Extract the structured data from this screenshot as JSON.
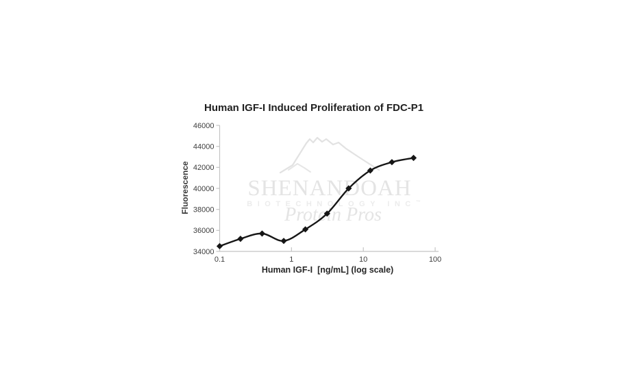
{
  "chart": {
    "title": "Human IGF-I Induced Proliferation of FDC-P1",
    "xlabel": "Human IGF-I  [ng/mL] (log scale)",
    "ylabel": "Fluorescence"
  },
  "watermark": {
    "name": "SHENANDOAH",
    "subtitle": "BIOTECHNOLOGY INC",
    "trademark": "™",
    "tagline": "Protein Pros"
  },
  "chart_data": {
    "type": "line",
    "title": "Human IGF-I Induced Proliferation of FDC-P1",
    "xlabel": "Human IGF-I  [ng/mL] (log scale)",
    "ylabel": "Fluorescence",
    "x_scale": "log",
    "xlim": [
      0.1,
      100
    ],
    "ylim": [
      34000,
      46000
    ],
    "x_ticks": [
      0.1,
      1,
      10,
      100
    ],
    "x_tick_labels": [
      "0.1",
      "1",
      "10",
      "100"
    ],
    "y_ticks": [
      34000,
      36000,
      38000,
      40000,
      42000,
      44000,
      46000
    ],
    "grid": false,
    "legend": false,
    "marker": "diamond",
    "line_color": "#161616",
    "axis_color": "#c4c4c4",
    "tick_label_color": "#3d3d3d",
    "series": [
      {
        "name": "Human IGF-I",
        "x": [
          0.1,
          0.195,
          0.39,
          0.78,
          1.56,
          3.13,
          6.25,
          12.5,
          25,
          50
        ],
        "y": [
          34500,
          35200,
          35700,
          35000,
          36100,
          37600,
          40000,
          41700,
          42500,
          42900
        ]
      }
    ]
  }
}
